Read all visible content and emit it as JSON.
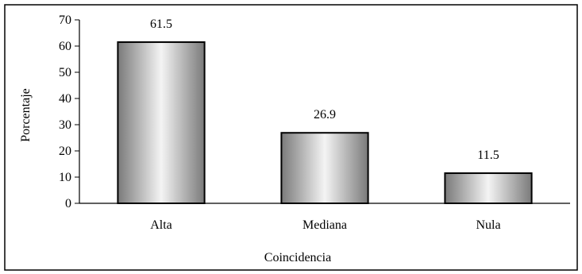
{
  "chart_data": {
    "type": "bar",
    "categories": [
      "Alta",
      "Mediana",
      "Nula"
    ],
    "values": [
      61.5,
      26.9,
      11.5
    ],
    "data_labels": [
      "61.5",
      "26.9",
      "11.5"
    ],
    "title": "",
    "xlabel": "Coincidencia",
    "ylabel": "Porcentaje",
    "ylim": [
      0,
      70
    ],
    "yticks": [
      "0",
      "10",
      "20",
      "30",
      "40",
      "50",
      "60",
      "70"
    ],
    "grid": false,
    "legend": "none",
    "bar_style": "cylinder-gradient",
    "colors": {
      "bar_dark": "#7a7a7a",
      "bar_light": "#f4f4f4",
      "outline": "#000000",
      "background": "#ffffff"
    }
  }
}
